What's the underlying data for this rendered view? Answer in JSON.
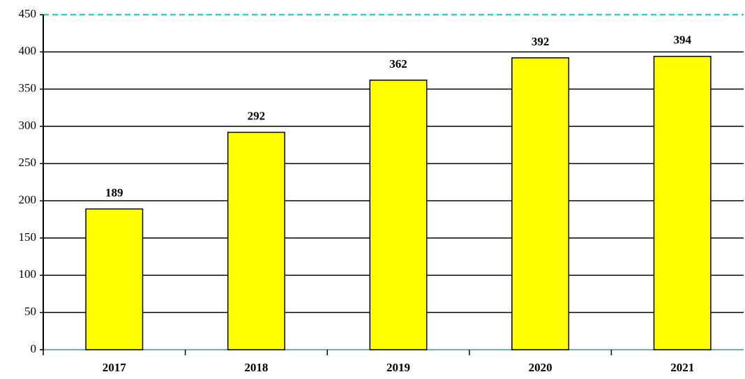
{
  "chart_data": {
    "type": "bar",
    "categories": [
      "2017",
      "2018",
      "2019",
      "2020",
      "2021"
    ],
    "values": [
      189,
      292,
      362,
      392,
      394
    ],
    "color": "#ffff00",
    "ylim": [
      0,
      450
    ],
    "yticks": [
      0,
      50,
      100,
      150,
      200,
      250,
      300,
      350,
      400,
      450
    ],
    "grid": true
  }
}
